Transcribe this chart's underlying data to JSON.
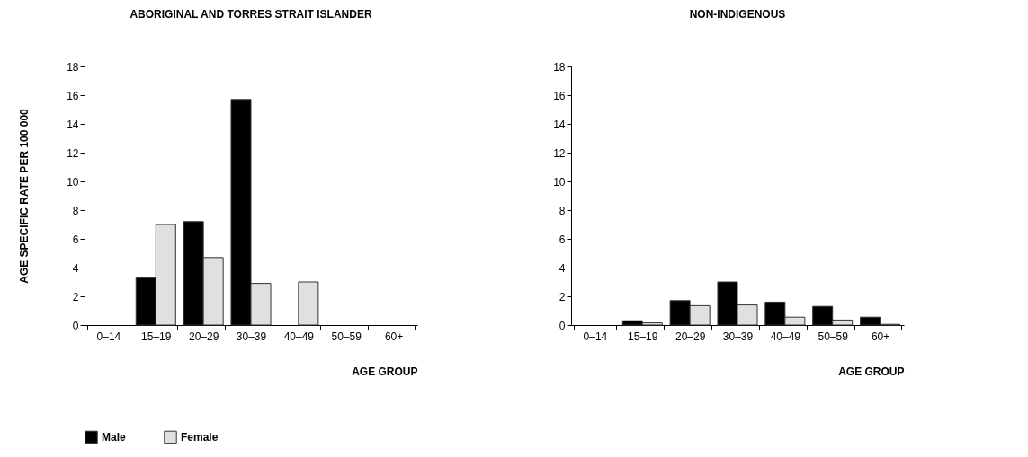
{
  "chart_data": [
    {
      "type": "bar",
      "title": "ABORIGINAL AND TORRES STRAIT ISLANDER",
      "xlabel": "AGE GROUP",
      "ylabel": "AGE SPECIFIC RATE PER 100 000",
      "categories": [
        "0–14",
        "15–19",
        "20–29",
        "30–39",
        "40–49",
        "50–59",
        "60+"
      ],
      "series": [
        {
          "name": "Male",
          "color": "#000000",
          "values": [
            0,
            3.3,
            7.2,
            15.7,
            0,
            0,
            0
          ]
        },
        {
          "name": "Female",
          "color": "#e0e0e0",
          "values": [
            0,
            7.0,
            4.7,
            2.9,
            3.0,
            0,
            0
          ]
        }
      ],
      "ylim": [
        0,
        18
      ],
      "yticks": [
        0,
        2,
        4,
        6,
        8,
        10,
        12,
        14,
        16,
        18
      ],
      "grid": false,
      "legend": "bottom left"
    },
    {
      "type": "bar",
      "title": "NON-INDIGENOUS",
      "xlabel": "AGE GROUP",
      "categories": [
        "0–14",
        "15–19",
        "20–29",
        "30–39",
        "40–49",
        "50–59",
        "60+"
      ],
      "series": [
        {
          "name": "Male",
          "color": "#000000",
          "values": [
            0,
            0.3,
            1.7,
            3.0,
            1.6,
            1.3,
            0.55
          ]
        },
        {
          "name": "Female",
          "color": "#e0e0e0",
          "values": [
            0,
            0.15,
            1.35,
            1.4,
            0.55,
            0.35,
            0.05
          ]
        }
      ],
      "ylim": [
        0,
        18
      ],
      "yticks": [
        0,
        2,
        4,
        6,
        8,
        10,
        12,
        14,
        16,
        18
      ],
      "grid": false,
      "legend": false
    }
  ]
}
